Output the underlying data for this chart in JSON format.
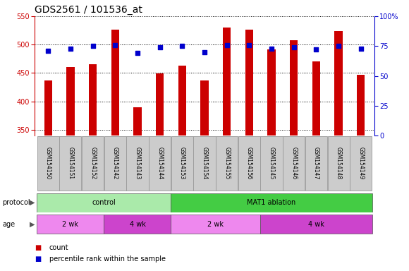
{
  "title": "GDS2561 / 101536_at",
  "samples": [
    "GSM154150",
    "GSM154151",
    "GSM154152",
    "GSM154142",
    "GSM154143",
    "GSM154144",
    "GSM154153",
    "GSM154154",
    "GSM154155",
    "GSM154156",
    "GSM154145",
    "GSM154146",
    "GSM154147",
    "GSM154148",
    "GSM154149"
  ],
  "counts": [
    437,
    460,
    465,
    527,
    390,
    449,
    463,
    437,
    530,
    527,
    492,
    508,
    470,
    524,
    447
  ],
  "percentiles": [
    71,
    73,
    75,
    76,
    69,
    74,
    75,
    70,
    76,
    76,
    73,
    74,
    72,
    75,
    73
  ],
  "ylim_left": [
    340,
    550
  ],
  "ylim_right": [
    0,
    100
  ],
  "yticks_left": [
    350,
    400,
    450,
    500,
    550
  ],
  "yticks_right": [
    0,
    25,
    50,
    75,
    100
  ],
  "bar_color": "#cc0000",
  "dot_color": "#0000cc",
  "grid_color": "#000000",
  "protocol_groups": [
    {
      "label": "control",
      "start": 0,
      "end": 5,
      "color": "#aaeaaa"
    },
    {
      "label": "MAT1 ablation",
      "start": 6,
      "end": 14,
      "color": "#44cc44"
    }
  ],
  "age_groups": [
    {
      "label": "2 wk",
      "start": 0,
      "end": 2,
      "color": "#ee88ee"
    },
    {
      "label": "4 wk",
      "start": 3,
      "end": 5,
      "color": "#cc44cc"
    },
    {
      "label": "2 wk",
      "start": 6,
      "end": 9,
      "color": "#ee88ee"
    },
    {
      "label": "4 wk",
      "start": 10,
      "end": 14,
      "color": "#cc44cc"
    }
  ],
  "sample_bg_color": "#cccccc",
  "sample_border_color": "#999999",
  "background_color": "#ffffff",
  "title_fontsize": 10,
  "tick_fontsize": 7,
  "sample_fontsize": 5.5,
  "row_fontsize": 7,
  "legend_fontsize": 7,
  "bar_width": 0.35
}
